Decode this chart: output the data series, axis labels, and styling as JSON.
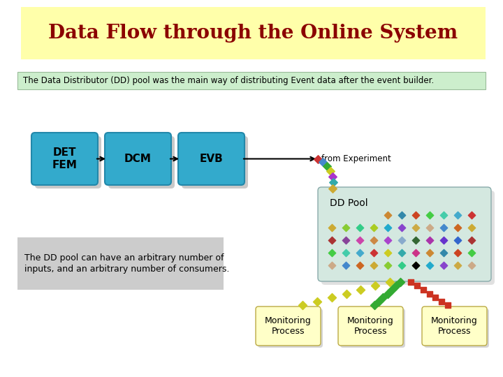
{
  "title": "Data Flow through the Online System",
  "title_color": "#8B0000",
  "title_bg": "#FFFFAA",
  "subtitle": "The Data Distributor (DD) pool was the main way of distributing Event data after the event builder.",
  "subtitle_bg": "#CCEECC",
  "subtitle_border": "#99BB99",
  "box_labels": [
    "DET\nFEM",
    "DCM",
    "EVB"
  ],
  "box_color": "#33AACC",
  "box_border": "#2288AA",
  "box_shadow": "#888888",
  "dd_pool_label": "DD Pool",
  "dd_pool_bg": "#D4E8E0",
  "dd_pool_border": "#88AAAA",
  "monitoring_label": "Monitoring\nProcess",
  "monitoring_bg": "#FFFFC8",
  "monitoring_border": "#BBAA44",
  "from_exp_label": "from Experiment",
  "text_box_label": "The DD pool can have an arbitrary number of\ninputs, and an arbitrary number of consumers.",
  "text_box_bg": "#CCCCCC",
  "bg_color": "#FFFFFF",
  "dot_colors": [
    "#CC3333",
    "#4488CC",
    "#336633",
    "#CCCC22",
    "#CC6622",
    "#AA33AA",
    "#33AAAA",
    "#CCAA33",
    "#6633CC",
    "#CC3388",
    "#88CC33",
    "#3366CC",
    "#CC8833",
    "#33CC88",
    "#AA3333",
    "#3388AA",
    "#AACC22",
    "#884499",
    "#CC4422",
    "#22AACC",
    "#CC44AA",
    "#44CC44",
    "#8844CC",
    "#CC8844",
    "#44CCAA",
    "#CCAA44",
    "#AA44CC",
    "#44AACC",
    "#CCAA88",
    "#88AACC"
  ]
}
